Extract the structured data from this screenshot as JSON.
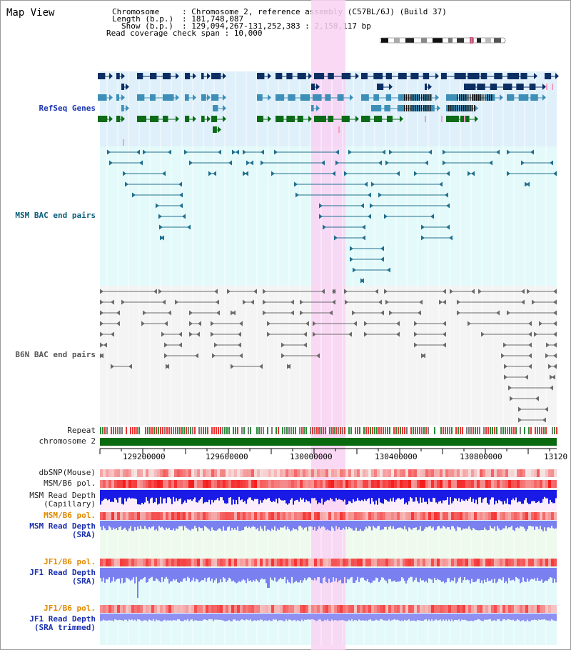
{
  "page_title": "Map View",
  "header": {
    "line1_key": "Chromosome",
    "line1_val": ": Chromosome 2, reference assembly (C57BL/6J) (Build 37)",
    "line2_key": "Length (b.p.)",
    "line2_val": ": 181,748,087",
    "line3_key": "Show (b.p.)",
    "line3_val": ": 129,094,267-131,252,383 : 2,158,117 bp",
    "line4": "Read coverage check span : 10,000"
  },
  "tracks": {
    "refseq": "RefSeq Genes",
    "msm_bac": "MSM BAC end pairs",
    "b6n_bac": "B6N BAC end pairs",
    "repeat": "Repeat",
    "chromosome": "chromosome 2",
    "dbsnp": "dbSNP(Mouse)",
    "msm_b6_pol_1": "MSM/B6 pol.",
    "msm_depth_cap_1": "MSM Read Depth",
    "msm_depth_cap_2": "(Capillary)",
    "msm_b6_pol_2": "MSM/B6 pol.",
    "msm_depth_sra_1": "MSM Read Depth",
    "msm_depth_sra_2": "(SRA)",
    "jf1_b6_pol_1": "JF1/B6 pol.",
    "jf1_depth_sra_1": "JF1 Read Depth",
    "jf1_depth_sra_2": "(SRA)",
    "jf1_b6_pol_2": "JF1/B6 pol.",
    "jf1_depth_trim_1": "JF1 Read Depth",
    "jf1_depth_trim_2": "(SRA trimmed)"
  },
  "ruler": {
    "ticks": [
      "129200000",
      "129600000",
      "130000000",
      "130400000",
      "130800000",
      "13120"
    ]
  },
  "colors": {
    "refseq_bg": "#dff0fa",
    "msm_bg": "#e4fafa",
    "b6n_bg": "#f4f4f4",
    "highlight": "#f9d2f3",
    "gene_navy": "#0b2e63",
    "gene_blue": "#3e8fb8",
    "gene_green": "#0b6b16",
    "msm_line": "#1f6f8f",
    "b6n_line": "#6a6a6a",
    "chromosome": "#0a6a10"
  }
}
